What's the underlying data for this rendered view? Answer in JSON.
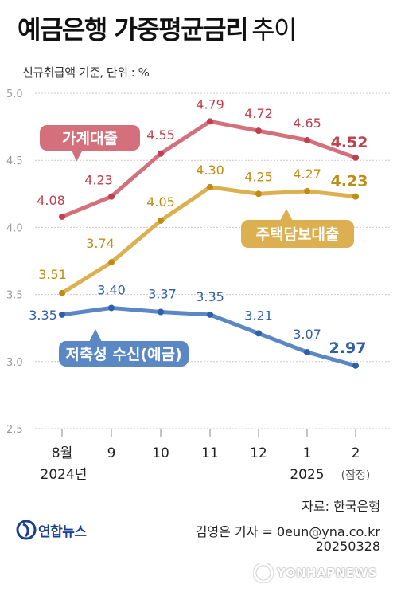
{
  "header": {
    "title_bold": "예금은행 가중평균금리",
    "title_light": "추이",
    "subtitle": "신규취급액 기준, 단위 : %"
  },
  "chart_data": {
    "type": "line",
    "categories": [
      "8월",
      "9",
      "10",
      "11",
      "12",
      "1",
      "2"
    ],
    "category_sublabels": [
      "2024년",
      "",
      "",
      "",
      "",
      "2025",
      "(잠정)"
    ],
    "ylim": [
      2.5,
      5.0
    ],
    "yticks": [
      "2.5",
      "3.0",
      "3.5",
      "4.0",
      "4.5",
      "5.0"
    ],
    "grid": true,
    "series": [
      {
        "name": "가계대출",
        "values": [
          4.08,
          4.23,
          4.55,
          4.79,
          4.72,
          4.65,
          4.52
        ],
        "labels": [
          "4.08",
          "4.23",
          "4.55",
          "4.79",
          "4.72",
          "4.65",
          "4.52"
        ],
        "color": "#d4707c",
        "dark": "#c0404e"
      },
      {
        "name": "주택담보대출",
        "values": [
          3.51,
          3.74,
          4.05,
          4.3,
          4.25,
          4.27,
          4.23
        ],
        "labels": [
          "3.51",
          "3.74",
          "4.05",
          "4.30",
          "4.25",
          "4.27",
          "4.23"
        ],
        "color": "#dcb050",
        "dark": "#c08c14"
      },
      {
        "name": "저축성 수신(예금)",
        "values": [
          3.35,
          3.4,
          3.37,
          3.35,
          3.21,
          3.07,
          2.97
        ],
        "labels": [
          "3.35",
          "3.40",
          "3.37",
          "3.35",
          "3.21",
          "3.07",
          "2.97"
        ],
        "color": "#5b87c5",
        "dark": "#2f5fa8"
      }
    ]
  },
  "footer": {
    "source": "자료: 한국은행",
    "reporter": "김영은 기자 = 0eun@yna.co.kr",
    "date": "20250328",
    "logo_text": "연합뉴스",
    "watermark_text": "YONHAPNEWS"
  }
}
